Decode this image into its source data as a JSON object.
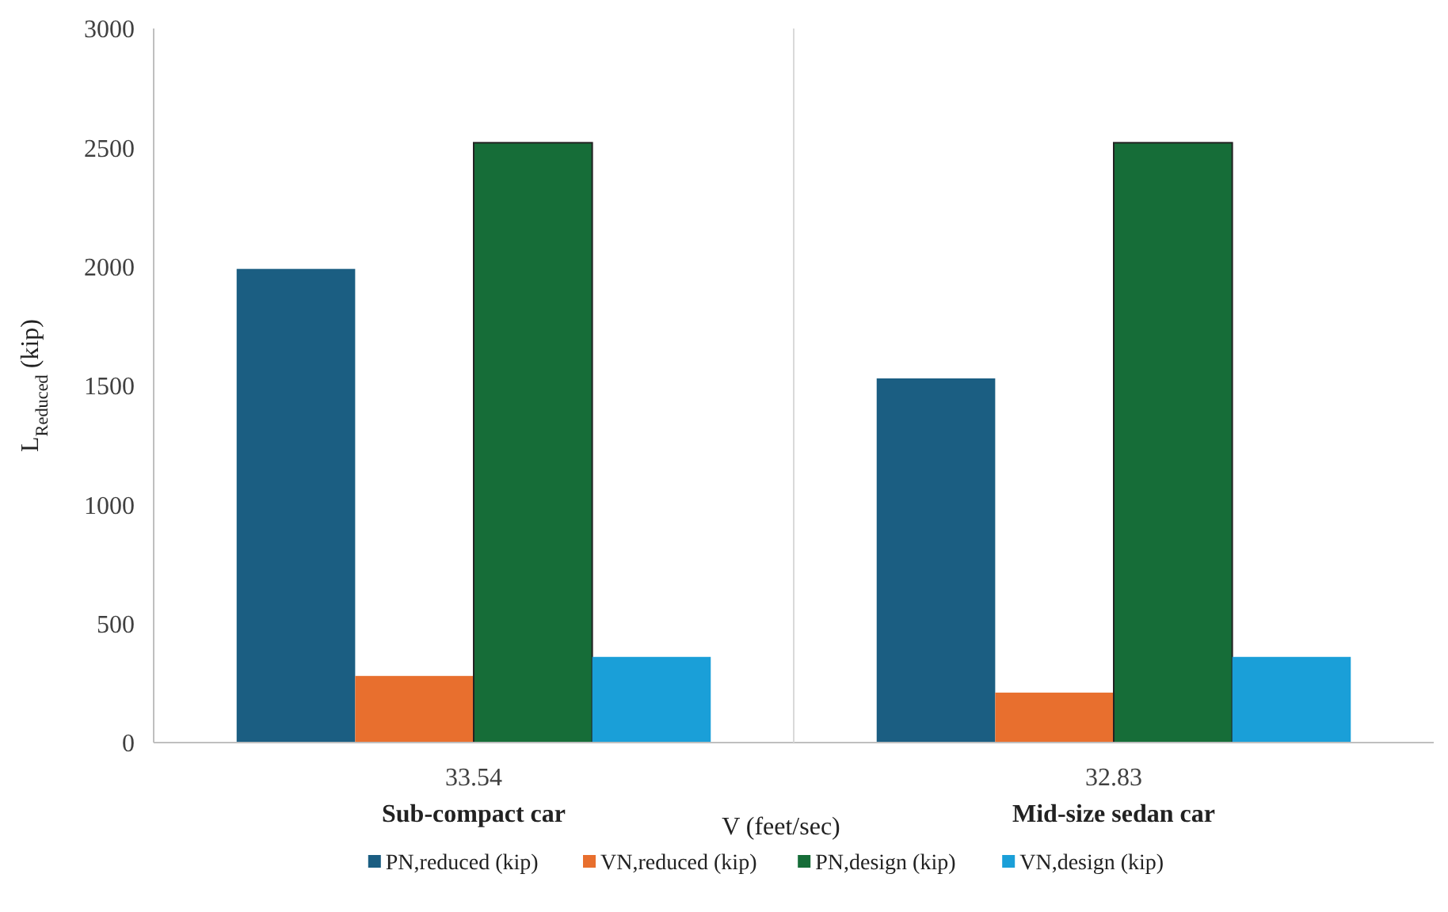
{
  "chart_data": {
    "type": "bar",
    "xlabel": "V (feet/sec)",
    "ylabel": "L$_{Reduced}$ (kip)",
    "categories": [
      "33.54",
      "32.83"
    ],
    "series": [
      {
        "name": "PN,reduced (kip)",
        "color": "#1b5e82",
        "values": [
          1990,
          1530
        ]
      },
      {
        "name": "VN,reduced (kip)",
        "color": "#e86f2e",
        "values": [
          280,
          210
        ]
      },
      {
        "name": "PN,design (kip)",
        "color": "#166d38",
        "values": [
          2520,
          2520
        ]
      },
      {
        "name": "VN,design (kip)",
        "color": "#1a9fd8",
        "values": [
          360,
          360
        ]
      }
    ],
    "ylim": [
      0,
      3000
    ],
    "yticks": [
      0,
      500,
      1000,
      1500,
      2000,
      2500,
      3000
    ],
    "grid": false,
    "legend": "bottom",
    "annotations": [
      "Sub-compact car",
      "Mid-size sedan car"
    ]
  }
}
